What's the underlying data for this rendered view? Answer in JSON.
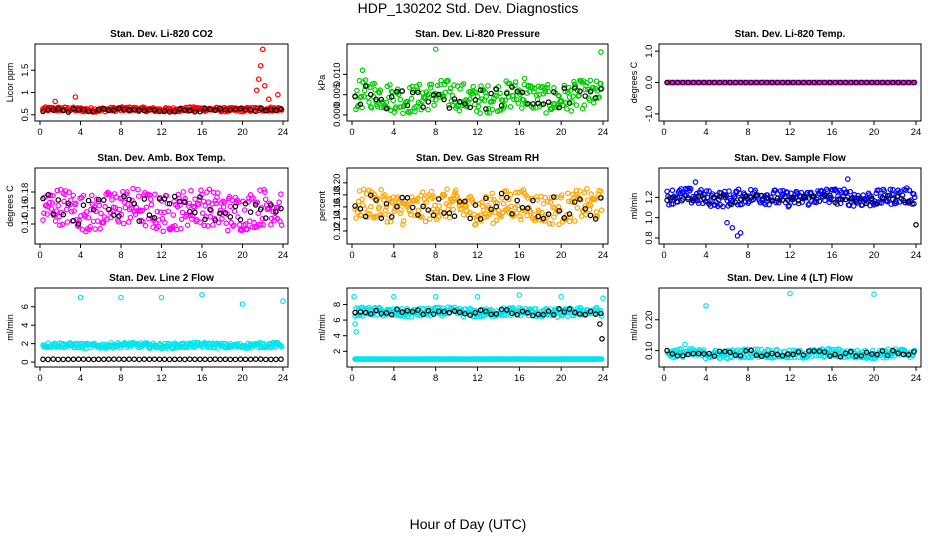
{
  "figure": {
    "title": "HDP_130202  Std. Dev. Diagnostics",
    "xlabel": "Hour of Day (UTC)"
  },
  "chart_data": [
    {
      "type": "scatter",
      "title": "Stan. Dev. Li-820 CO2",
      "ylabel": "Licor ppm",
      "xlim": [
        0,
        24
      ],
      "ylim": [
        0.45,
        2.0
      ],
      "xticks": [
        0,
        4,
        8,
        12,
        16,
        20,
        24
      ],
      "xtick_labels": [
        "0",
        "4",
        "8",
        "12",
        "16",
        "20",
        "24"
      ],
      "yticks": [
        0.5,
        1.0,
        1.5
      ],
      "ytick_labels": [
        "0.5",
        "1",
        "1.5"
      ],
      "series": [
        {
          "color": "#ff0000",
          "base": 0.62,
          "spread": 0.06,
          "step": 0.083,
          "outliers": [
            [
              1.5,
              0.8
            ],
            [
              3.5,
              0.9
            ],
            [
              21.4,
              1.05
            ],
            [
              21.6,
              1.3
            ],
            [
              21.8,
              1.6
            ],
            [
              22.0,
              1.97
            ],
            [
              22.2,
              1.15
            ],
            [
              22.6,
              0.85
            ],
            [
              23.5,
              0.95
            ]
          ]
        },
        {
          "color": "#000000",
          "base": 0.6,
          "spread": 0.05,
          "step": 0.5,
          "outliers": []
        }
      ]
    },
    {
      "type": "scatter",
      "title": "Stan. Dev. Li-820 Pressure",
      "ylabel": "kPa",
      "xlim": [
        0,
        24
      ],
      "ylim": [
        -0.0005,
        0.0165
      ],
      "xticks": [
        0,
        4,
        8,
        12,
        16,
        20,
        24
      ],
      "xtick_labels": [
        "0",
        "4",
        "8",
        "12",
        "16",
        "20",
        "24"
      ],
      "yticks": [
        0.0,
        0.005,
        0.01
      ],
      "ytick_labels": [
        "0.000",
        "0.005",
        "0.010"
      ],
      "series": [
        {
          "color": "#00cc00",
          "base": 0.0045,
          "spread": 0.0045,
          "step": 0.083,
          "outliers": [
            [
              8.0,
              0.0162
            ],
            [
              23.8,
              0.0155
            ],
            [
              1.0,
              0.011
            ],
            [
              16.5,
              0.009
            ]
          ]
        },
        {
          "color": "#000000",
          "base": 0.004,
          "spread": 0.0035,
          "step": 0.5,
          "outliers": []
        }
      ]
    },
    {
      "type": "scatter",
      "title": "Stan. Dev. Li-820 Temp.",
      "ylabel": "degrees C",
      "xlim": [
        0,
        24
      ],
      "ylim": [
        -1.1,
        1.1
      ],
      "xticks": [
        0,
        4,
        8,
        12,
        16,
        20,
        24
      ],
      "xtick_labels": [
        "0",
        "4",
        "8",
        "12",
        "16",
        "20",
        "24"
      ],
      "yticks": [
        -1.0,
        0.0,
        1.0
      ],
      "ytick_labels": [
        "-1.0",
        "0.0",
        "1.0"
      ],
      "series": [
        {
          "color": "#ff00ff",
          "base": 0.0,
          "spread": 0.0,
          "step": 0.083,
          "outliers": []
        },
        {
          "color": "#000000",
          "base": 0.0,
          "spread": 0.0,
          "step": 0.5,
          "outliers": []
        }
      ]
    },
    {
      "type": "scatter",
      "title": "Stan. Dev. Amb. Box Temp.",
      "ylabel": "degrees C",
      "xlim": [
        0,
        24
      ],
      "ylim": [
        0.12,
        0.205
      ],
      "xticks": [
        0,
        4,
        8,
        12,
        16,
        20,
        24
      ],
      "xtick_labels": [
        "0",
        "4",
        "8",
        "12",
        "16",
        "20",
        "24"
      ],
      "yticks": [
        0.14,
        0.16,
        0.18
      ],
      "ytick_labels": [
        "0.14",
        "0.16",
        "0.18"
      ],
      "series": [
        {
          "color": "#ff00ff",
          "base": 0.158,
          "spread": 0.03,
          "step": 0.083,
          "outliers": []
        },
        {
          "color": "#000000",
          "base": 0.158,
          "spread": 0.02,
          "step": 0.5,
          "outliers": []
        }
      ]
    },
    {
      "type": "scatter",
      "title": "Stan. Dev. Gas Stream RH",
      "ylabel": "percent",
      "xlim": [
        0,
        24
      ],
      "ylim": [
        0.105,
        0.218
      ],
      "xticks": [
        0,
        4,
        8,
        12,
        16,
        20,
        24
      ],
      "xtick_labels": [
        "0",
        "4",
        "8",
        "12",
        "16",
        "20",
        "24"
      ],
      "yticks": [
        0.12,
        0.14,
        0.16,
        0.18,
        0.2
      ],
      "ytick_labels": [
        "0.12",
        "0.14",
        "0.16",
        "0.18",
        "0.20"
      ],
      "series": [
        {
          "color": "#ffa500",
          "base": 0.16,
          "spread": 0.032,
          "step": 0.083,
          "outliers": []
        },
        {
          "color": "#000000",
          "base": 0.16,
          "spread": 0.025,
          "step": 0.5,
          "outliers": []
        }
      ]
    },
    {
      "type": "scatter",
      "title": "Stan. Dev. Sample Flow",
      "ylabel": "ml/min",
      "xlim": [
        0,
        24
      ],
      "ylim": [
        0.78,
        1.45
      ],
      "xticks": [
        0,
        4,
        8,
        12,
        16,
        20,
        24
      ],
      "xtick_labels": [
        "0",
        "4",
        "8",
        "12",
        "16",
        "20",
        "24"
      ],
      "yticks": [
        0.8,
        1.0,
        1.2
      ],
      "ytick_labels": [
        "0.8",
        "1.0",
        "1.2"
      ],
      "series": [
        {
          "color": "#0000ff",
          "base": 1.2,
          "spread": 0.1,
          "step": 0.083,
          "outliers": [
            [
              7.0,
              0.82
            ],
            [
              7.3,
              0.85
            ],
            [
              6.5,
              0.9
            ],
            [
              6.0,
              0.95
            ],
            [
              3.0,
              1.35
            ],
            [
              17.5,
              1.38
            ]
          ]
        },
        {
          "color": "#000000",
          "base": 1.18,
          "spread": 0.06,
          "step": 0.5,
          "outliers": [
            [
              24.0,
              0.93
            ]
          ]
        }
      ]
    },
    {
      "type": "scatter",
      "title": "Stan. Dev. Line 2 Flow",
      "ylabel": "ml/min",
      "xlim": [
        0,
        24
      ],
      "ylim": [
        -0.1,
        7.6
      ],
      "xticks": [
        0,
        4,
        8,
        12,
        16,
        20,
        24
      ],
      "xtick_labels": [
        "0",
        "4",
        "8",
        "12",
        "16",
        "20",
        "24"
      ],
      "yticks": [
        0,
        2,
        4,
        6
      ],
      "ytick_labels": [
        "0",
        "2",
        "4",
        "6"
      ],
      "series": [
        {
          "color": "#00e5ee",
          "base": 1.8,
          "spread": 0.35,
          "step": 0.083,
          "outliers": [
            [
              4.0,
              7.0
            ],
            [
              8.0,
              7.0
            ],
            [
              12.0,
              7.0
            ],
            [
              16.0,
              7.3
            ],
            [
              20.0,
              6.3
            ],
            [
              24.0,
              6.6
            ]
          ]
        },
        {
          "color": "#000000",
          "base": 0.3,
          "spread": 0.02,
          "step": 0.5,
          "outliers": []
        }
      ]
    },
    {
      "type": "scatter",
      "title": "Stan. Dev. Line 3 Flow",
      "ylabel": "ml/min",
      "xlim": [
        0,
        24
      ],
      "ylim": [
        0.5,
        9.6
      ],
      "xticks": [
        0,
        4,
        8,
        12,
        16,
        20,
        24
      ],
      "xtick_labels": [
        "0",
        "4",
        "8",
        "12",
        "16",
        "20",
        "24"
      ],
      "yticks": [
        2,
        4,
        6,
        8
      ],
      "ytick_labels": [
        "2",
        "4",
        "6",
        "8"
      ],
      "series": [
        {
          "color": "#00e5ee",
          "base": 7.0,
          "spread": 0.7,
          "step": 0.083,
          "outliers": [
            [
              0.2,
              9.0
            ],
            [
              0.3,
              5.5
            ],
            [
              0.4,
              4.5
            ],
            [
              4.0,
              9.0
            ],
            [
              8.0,
              9.0
            ],
            [
              12.0,
              9.0
            ],
            [
              16.0,
              9.2
            ],
            [
              20.0,
              9.0
            ],
            [
              24.0,
              8.8
            ]
          ]
        },
        {
          "color": "#00e5ee",
          "base": 1.0,
          "spread": 0.02,
          "step": 0.083,
          "outliers": []
        },
        {
          "color": "#000000",
          "base": 7.0,
          "spread": 0.5,
          "step": 0.5,
          "outliers": [
            [
              23.9,
              3.6
            ],
            [
              23.7,
              5.5
            ]
          ]
        }
      ]
    },
    {
      "type": "scatter",
      "title": "Stan. Dev. Line 4 (LT) Flow",
      "ylabel": "ml/min",
      "xlim": [
        0,
        24
      ],
      "ylim": [
        0.06,
        0.29
      ],
      "xticks": [
        0,
        4,
        8,
        12,
        16,
        20,
        24
      ],
      "xtick_labels": [
        "0",
        "4",
        "8",
        "12",
        "16",
        "20",
        "24"
      ],
      "yticks": [
        0.1,
        0.2
      ],
      "ytick_labels": [
        "0.10",
        "0.20"
      ],
      "series": [
        {
          "color": "#00e5ee",
          "base": 0.09,
          "spread": 0.018,
          "step": 0.083,
          "outliers": [
            [
              4.0,
              0.245
            ],
            [
              12.0,
              0.285
            ],
            [
              20.0,
              0.283
            ],
            [
              2.0,
              0.12
            ]
          ]
        },
        {
          "color": "#000000",
          "base": 0.09,
          "spread": 0.012,
          "step": 0.5,
          "outliers": []
        }
      ]
    }
  ]
}
